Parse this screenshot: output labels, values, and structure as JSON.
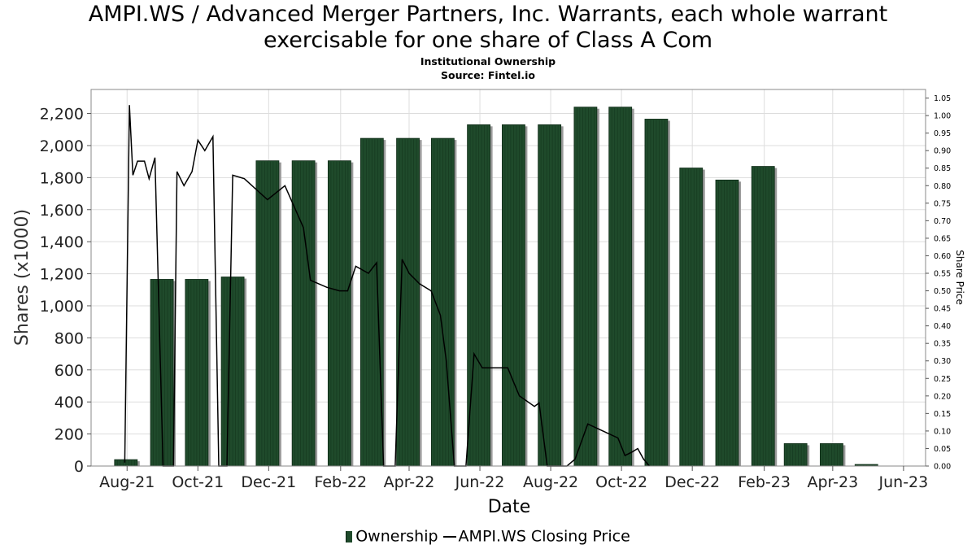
{
  "title_line1": "AMPI.WS / Advanced Merger Partners, Inc. Warrants, each whole warrant",
  "title_line2": "exercisable for one share of Class A Com",
  "subtitle": "Institutional Ownership",
  "source": "Source: Fintel.io",
  "legend": {
    "bar_label": "Ownership",
    "line_label": "AMPI.WS Closing Price"
  },
  "colors": {
    "bar": "#1f4a2b",
    "bar_shadow": "#9a9a9a",
    "line": "#000000",
    "grid": "#dddddd"
  },
  "chart_data": {
    "type": "bar",
    "xlabel": "Date",
    "ylabel": "Shares (x1000)",
    "y2label": "Share Price",
    "ylim": [
      0,
      2350
    ],
    "y2lim": [
      0,
      1.0745
    ],
    "xlim": [
      "2021-07-01",
      "2023-06-20"
    ],
    "grid": true,
    "legend_position": "bottom",
    "x_ticks": [
      {
        "date": "2021-08-01",
        "label": "Aug-21"
      },
      {
        "date": "2021-10-01",
        "label": "Oct-21"
      },
      {
        "date": "2021-12-01",
        "label": "Dec-21"
      },
      {
        "date": "2022-02-01",
        "label": "Feb-22"
      },
      {
        "date": "2022-04-01",
        "label": "Apr-22"
      },
      {
        "date": "2022-06-01",
        "label": "Jun-22"
      },
      {
        "date": "2022-08-01",
        "label": "Aug-22"
      },
      {
        "date": "2022-10-01",
        "label": "Oct-22"
      },
      {
        "date": "2022-12-01",
        "label": "Dec-22"
      },
      {
        "date": "2023-02-01",
        "label": "Feb-23"
      },
      {
        "date": "2023-04-01",
        "label": "Apr-23"
      },
      {
        "date": "2023-06-01",
        "label": "Jun-23"
      }
    ],
    "y_ticks": [
      0,
      200,
      400,
      600,
      800,
      1000,
      1200,
      1400,
      1600,
      1800,
      2000,
      2200
    ],
    "y_tick_labels": [
      "0",
      "200",
      "400",
      "600",
      "800",
      "1,000",
      "1,200",
      "1,400",
      "1,600",
      "1,800",
      "2,000",
      "2,200"
    ],
    "y2_ticks": [
      0,
      0.05,
      0.1,
      0.15,
      0.2,
      0.25,
      0.3,
      0.35,
      0.4,
      0.45,
      0.5,
      0.55,
      0.6,
      0.65,
      0.7,
      0.75,
      0.8,
      0.85,
      0.9,
      0.95,
      1.0,
      1.05
    ],
    "y2_tick_labels": [
      "0.00",
      "0.05",
      "0.10",
      "0.15",
      "0.20",
      "0.25",
      "0.30",
      "0.35",
      "0.40",
      "0.45",
      "0.50",
      "0.55",
      "0.60",
      "0.65",
      "0.70",
      "0.75",
      "0.80",
      "0.85",
      "0.90",
      "0.95",
      "1.00",
      "1.05"
    ],
    "series": [
      {
        "name": "Ownership",
        "type": "bar",
        "axis": "left",
        "points": [
          {
            "date": "2021-07-31",
            "value": 40
          },
          {
            "date": "2021-08-31",
            "value": 1165
          },
          {
            "date": "2021-09-30",
            "value": 1165
          },
          {
            "date": "2021-10-31",
            "value": 1180
          },
          {
            "date": "2021-11-30",
            "value": 1905
          },
          {
            "date": "2021-12-31",
            "value": 1905
          },
          {
            "date": "2022-01-31",
            "value": 1905
          },
          {
            "date": "2022-02-28",
            "value": 2045
          },
          {
            "date": "2022-03-31",
            "value": 2045
          },
          {
            "date": "2022-04-30",
            "value": 2045
          },
          {
            "date": "2022-05-31",
            "value": 2130
          },
          {
            "date": "2022-06-30",
            "value": 2130
          },
          {
            "date": "2022-07-31",
            "value": 2130
          },
          {
            "date": "2022-08-31",
            "value": 2240
          },
          {
            "date": "2022-09-30",
            "value": 2240
          },
          {
            "date": "2022-10-31",
            "value": 2165
          },
          {
            "date": "2022-11-30",
            "value": 1860
          },
          {
            "date": "2022-12-31",
            "value": 1785
          },
          {
            "date": "2023-01-31",
            "value": 1870
          },
          {
            "date": "2023-02-28",
            "value": 140
          },
          {
            "date": "2023-03-31",
            "value": 140
          },
          {
            "date": "2023-04-30",
            "value": 10
          }
        ]
      },
      {
        "name": "AMPI.WS Closing Price",
        "type": "line",
        "axis": "right",
        "points": [
          {
            "date": "2021-07-30",
            "value": 0.01
          },
          {
            "date": "2021-08-03",
            "value": 1.03
          },
          {
            "date": "2021-08-06",
            "value": 0.83
          },
          {
            "date": "2021-08-10",
            "value": 0.87
          },
          {
            "date": "2021-08-16",
            "value": 0.87
          },
          {
            "date": "2021-08-20",
            "value": 0.82
          },
          {
            "date": "2021-08-25",
            "value": 0.88
          },
          {
            "date": "2021-09-01",
            "value": 0.0
          },
          {
            "date": "2021-09-10",
            "value": 0.0
          },
          {
            "date": "2021-09-13",
            "value": 0.84
          },
          {
            "date": "2021-09-19",
            "value": 0.8
          },
          {
            "date": "2021-09-26",
            "value": 0.84
          },
          {
            "date": "2021-10-01",
            "value": 0.93
          },
          {
            "date": "2021-10-07",
            "value": 0.9
          },
          {
            "date": "2021-10-14",
            "value": 0.94
          },
          {
            "date": "2021-10-19",
            "value": 0.0
          },
          {
            "date": "2021-10-26",
            "value": 0.0
          },
          {
            "date": "2021-10-31",
            "value": 0.83
          },
          {
            "date": "2021-11-10",
            "value": 0.82
          },
          {
            "date": "2021-11-30",
            "value": 0.76
          },
          {
            "date": "2021-12-15",
            "value": 0.8
          },
          {
            "date": "2021-12-31",
            "value": 0.68
          },
          {
            "date": "2022-01-06",
            "value": 0.53
          },
          {
            "date": "2022-01-20",
            "value": 0.51
          },
          {
            "date": "2022-01-31",
            "value": 0.5
          },
          {
            "date": "2022-02-07",
            "value": 0.5
          },
          {
            "date": "2022-02-14",
            "value": 0.57
          },
          {
            "date": "2022-02-25",
            "value": 0.55
          },
          {
            "date": "2022-03-04",
            "value": 0.58
          },
          {
            "date": "2022-03-10",
            "value": 0.0
          },
          {
            "date": "2022-03-20",
            "value": 0.0
          },
          {
            "date": "2022-03-26",
            "value": 0.59
          },
          {
            "date": "2022-04-01",
            "value": 0.55
          },
          {
            "date": "2022-04-10",
            "value": 0.52
          },
          {
            "date": "2022-04-20",
            "value": 0.5
          },
          {
            "date": "2022-04-28",
            "value": 0.43
          },
          {
            "date": "2022-05-03",
            "value": 0.3
          },
          {
            "date": "2022-05-10",
            "value": 0.0
          },
          {
            "date": "2022-05-20",
            "value": 0.0
          },
          {
            "date": "2022-05-27",
            "value": 0.32
          },
          {
            "date": "2022-06-03",
            "value": 0.28
          },
          {
            "date": "2022-06-15",
            "value": 0.28
          },
          {
            "date": "2022-06-25",
            "value": 0.28
          },
          {
            "date": "2022-06-30",
            "value": 0.24
          },
          {
            "date": "2022-07-05",
            "value": 0.2
          },
          {
            "date": "2022-07-18",
            "value": 0.17
          },
          {
            "date": "2022-07-22",
            "value": 0.18
          },
          {
            "date": "2022-07-29",
            "value": 0.0
          },
          {
            "date": "2022-08-15",
            "value": 0.0
          },
          {
            "date": "2022-08-22",
            "value": 0.02
          },
          {
            "date": "2022-09-02",
            "value": 0.12
          },
          {
            "date": "2022-09-15",
            "value": 0.1
          },
          {
            "date": "2022-09-28",
            "value": 0.08
          },
          {
            "date": "2022-10-04",
            "value": 0.03
          },
          {
            "date": "2022-10-10",
            "value": 0.04
          },
          {
            "date": "2022-10-15",
            "value": 0.05
          },
          {
            "date": "2022-10-20",
            "value": 0.02
          },
          {
            "date": "2022-10-25",
            "value": 0.0
          }
        ]
      }
    ]
  }
}
